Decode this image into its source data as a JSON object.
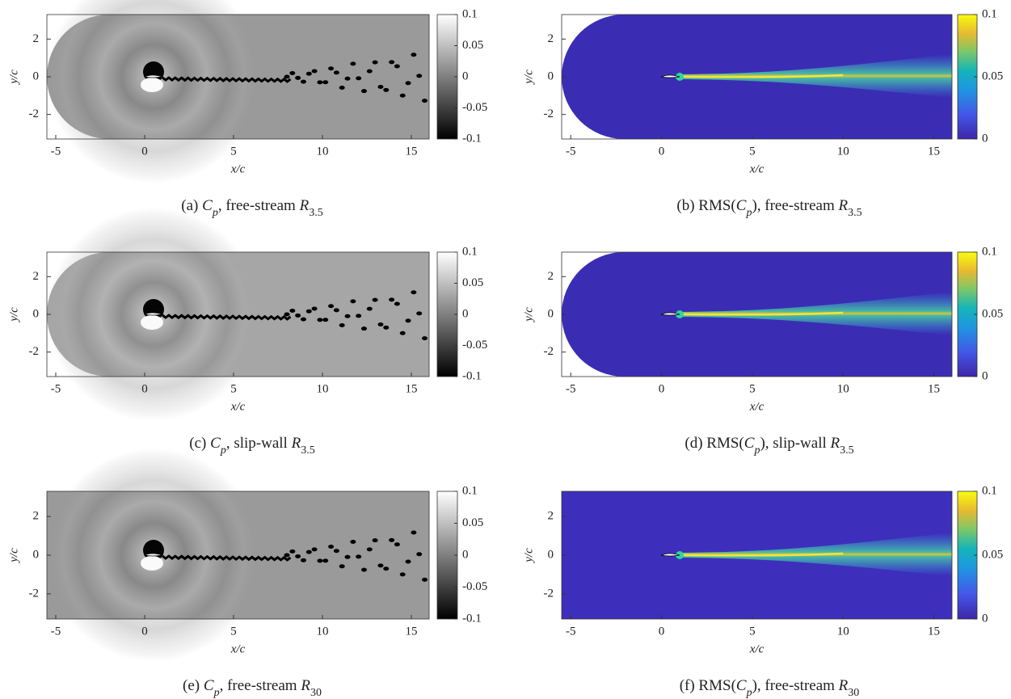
{
  "chart_data": [
    {
      "type": "contour",
      "colormap": "gray",
      "xlabel": "x/c",
      "ylabel": "y/c",
      "xlim": [
        -5.5,
        16
      ],
      "ylim": [
        -3.3,
        3.3
      ],
      "xticks": [
        -5,
        0,
        5,
        10,
        15
      ],
      "yticks": [
        -2,
        0,
        2
      ],
      "clim": [
        -0.1,
        0.1
      ],
      "cticks": [
        -0.1,
        -0.05,
        0,
        0.05,
        0.1
      ],
      "caption": [
        {
          "t": "(a) "
        },
        {
          "t": "C",
          "i": true
        },
        {
          "t": "p",
          "i": true,
          "sub": true
        },
        {
          "t": ", free-stream "
        },
        {
          "t": "R",
          "i": true
        },
        {
          "t": "3.5",
          "sub": true
        }
      ]
    },
    {
      "type": "contour",
      "colormap": "parula",
      "xlabel": "x/c",
      "ylabel": "y/c",
      "xlim": [
        -5.5,
        16
      ],
      "ylim": [
        -3.3,
        3.3
      ],
      "xticks": [
        -5,
        0,
        5,
        10,
        15
      ],
      "yticks": [
        -2,
        0,
        2
      ],
      "clim": [
        0,
        0.1
      ],
      "cticks": [
        0,
        0.05,
        0.1
      ],
      "caption": [
        {
          "t": "(b) RMS("
        },
        {
          "t": "C",
          "i": true
        },
        {
          "t": "p",
          "i": true,
          "sub": true
        },
        {
          "t": "), free-stream "
        },
        {
          "t": "R",
          "i": true
        },
        {
          "t": "3.5",
          "sub": true
        }
      ]
    },
    {
      "type": "contour",
      "colormap": "gray",
      "xlabel": "x/c",
      "ylabel": "y/c",
      "xlim": [
        -5.5,
        16
      ],
      "ylim": [
        -3.3,
        3.3
      ],
      "xticks": [
        -5,
        0,
        5,
        10,
        15
      ],
      "yticks": [
        -2,
        0,
        2
      ],
      "clim": [
        -0.1,
        0.1
      ],
      "cticks": [
        -0.1,
        -0.05,
        0,
        0.05,
        0.1
      ],
      "caption": [
        {
          "t": "(c) "
        },
        {
          "t": "C",
          "i": true
        },
        {
          "t": "p",
          "i": true,
          "sub": true
        },
        {
          "t": ", slip-wall "
        },
        {
          "t": "R",
          "i": true
        },
        {
          "t": "3.5",
          "sub": true
        }
      ]
    },
    {
      "type": "contour",
      "colormap": "parula",
      "xlabel": "x/c",
      "ylabel": "y/c",
      "xlim": [
        -5.5,
        16
      ],
      "ylim": [
        -3.3,
        3.3
      ],
      "xticks": [
        -5,
        0,
        5,
        10,
        15
      ],
      "yticks": [
        -2,
        0,
        2
      ],
      "clim": [
        0,
        0.1
      ],
      "cticks": [
        0,
        0.05,
        0.1
      ],
      "caption": [
        {
          "t": "(d) RMS("
        },
        {
          "t": "C",
          "i": true
        },
        {
          "t": "p",
          "i": true,
          "sub": true
        },
        {
          "t": "), slip-wall "
        },
        {
          "t": "R",
          "i": true
        },
        {
          "t": "3.5",
          "sub": true
        }
      ]
    },
    {
      "type": "contour",
      "colormap": "gray",
      "xlabel": "x/c",
      "ylabel": "y/c",
      "xlim": [
        -5.5,
        16
      ],
      "ylim": [
        -3.3,
        3.3
      ],
      "xticks": [
        -5,
        0,
        5,
        10,
        15
      ],
      "yticks": [
        -2,
        0,
        2
      ],
      "clim": [
        -0.1,
        0.1
      ],
      "cticks": [
        -0.1,
        -0.05,
        0,
        0.05,
        0.1
      ],
      "caption": [
        {
          "t": "(e) "
        },
        {
          "t": "C",
          "i": true
        },
        {
          "t": "p",
          "i": true,
          "sub": true
        },
        {
          "t": ", free-stream "
        },
        {
          "t": "R",
          "i": true
        },
        {
          "t": "30",
          "sub": true
        }
      ]
    },
    {
      "type": "contour",
      "colormap": "parula",
      "xlabel": "x/c",
      "ylabel": "y/c",
      "xlim": [
        -5.5,
        16
      ],
      "ylim": [
        -3.3,
        3.3
      ],
      "xticks": [
        -5,
        0,
        5,
        10,
        15
      ],
      "yticks": [
        -2,
        0,
        2
      ],
      "clim": [
        0,
        0.1
      ],
      "cticks": [
        0,
        0.05,
        0.1
      ],
      "caption": [
        {
          "t": "(f) RMS("
        },
        {
          "t": "C",
          "i": true
        },
        {
          "t": "p",
          "i": true,
          "sub": true
        },
        {
          "t": "), free-stream "
        },
        {
          "t": "R",
          "i": true
        },
        {
          "t": "30",
          "sub": true
        }
      ]
    }
  ]
}
